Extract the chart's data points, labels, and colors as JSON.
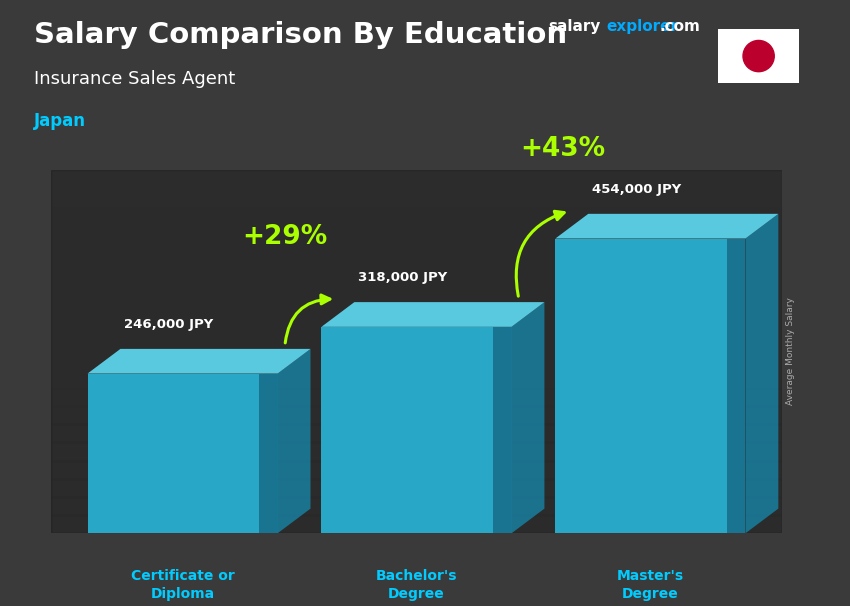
{
  "title_salary": "Salary Comparison By Education",
  "subtitle_job": "Insurance Sales Agent",
  "subtitle_country": "Japan",
  "site_salary": "salary",
  "site_explorer": "explorer",
  "site_com": ".com",
  "ylabel": "Average Monthly Salary",
  "categories": [
    "Certificate or\nDiploma",
    "Bachelor's\nDegree",
    "Master's\nDegree"
  ],
  "values": [
    246000,
    318000,
    454000
  ],
  "value_labels": [
    "246,000 JPY",
    "318,000 JPY",
    "454,000 JPY"
  ],
  "pct_labels": [
    "+29%",
    "+43%"
  ],
  "bar_front_color": "#29b6d8",
  "bar_top_color": "#5dd8f0",
  "bar_side_color": "#1a7a99",
  "bar_dark_color": "#0d4a66",
  "title_color": "#ffffff",
  "subtitle_color": "#ffffff",
  "country_color": "#00ccff",
  "value_label_color": "#ffffff",
  "pct_color": "#aaff00",
  "arrow_color": "#aaff00",
  "xtick_color": "#00ccff",
  "site_salary_color": "#ffffff",
  "site_explorer_color": "#00aaff",
  "site_com_color": "#ffffff",
  "ylabel_color": "#aaaaaa",
  "bg_color": "#3a3a3a",
  "overlay_color": "#1a1a1a",
  "ylim_max": 560000,
  "flag_red": "#BC002D"
}
